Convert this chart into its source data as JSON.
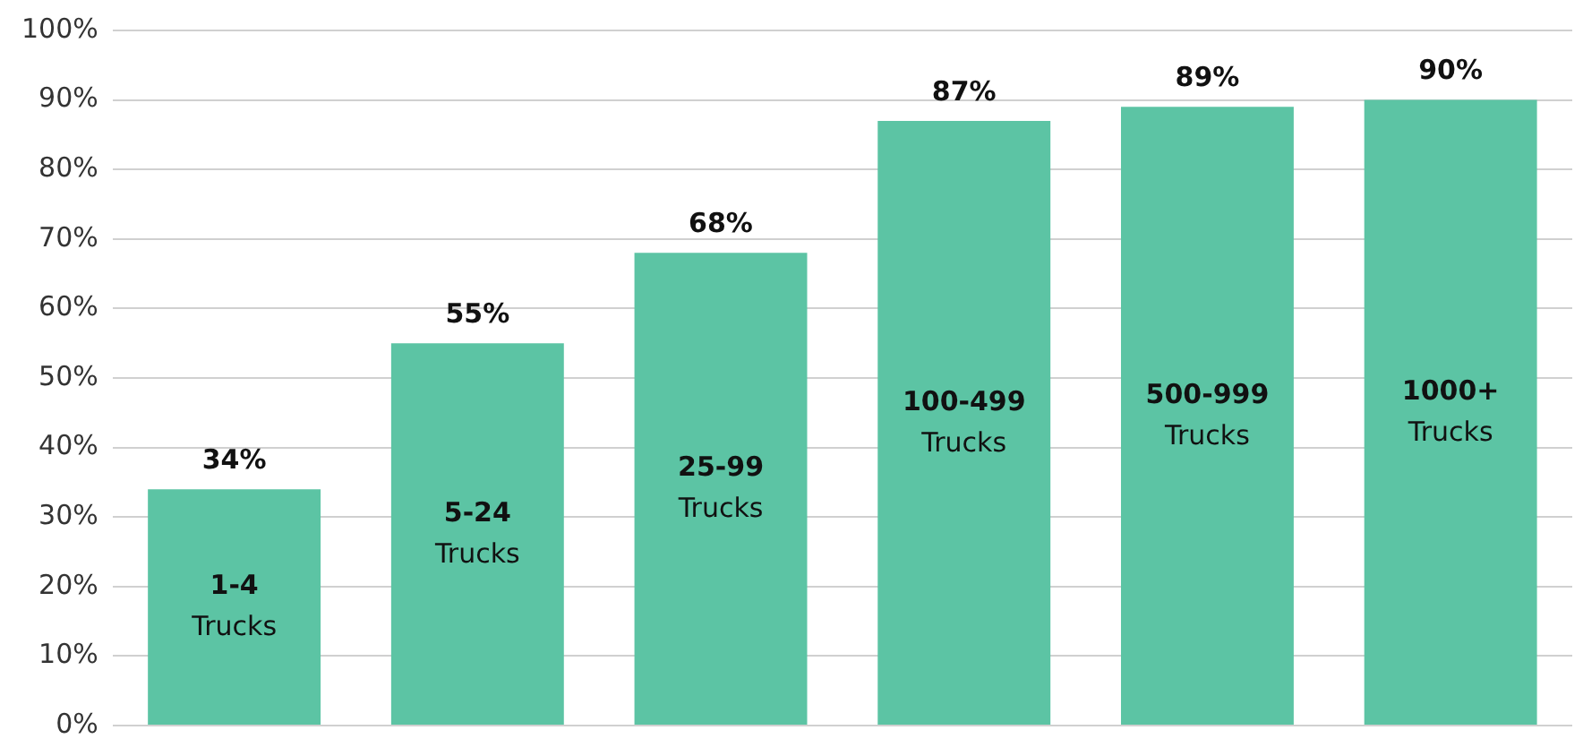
{
  "chart_data": {
    "type": "bar",
    "categories": [
      "1-4 Trucks",
      "5-24 Trucks",
      "25-99 Trucks",
      "100-499 Trucks",
      "500-999 Trucks",
      "1000+ Trucks"
    ],
    "values": [
      34,
      55,
      68,
      87,
      89,
      90
    ],
    "value_labels": [
      "34%",
      "55%",
      "68%",
      "87%",
      "89%",
      "90%"
    ],
    "color": "#5cc4a4",
    "ylim": [
      0,
      100
    ],
    "yticks": [
      {
        "value": 0,
        "label": "0%"
      },
      {
        "value": 10,
        "label": "10%"
      },
      {
        "value": 20,
        "label": "20%"
      },
      {
        "value": 30,
        "label": "30%"
      },
      {
        "value": 40,
        "label": "40%"
      },
      {
        "value": 50,
        "label": "50%"
      },
      {
        "value": 60,
        "label": "60%"
      },
      {
        "value": 70,
        "label": "70%"
      },
      {
        "value": 80,
        "label": "80%"
      },
      {
        "value": 90,
        "label": "90%"
      },
      {
        "value": 100,
        "label": "100%"
      }
    ],
    "grid": "y",
    "tick_labels": "y"
  }
}
